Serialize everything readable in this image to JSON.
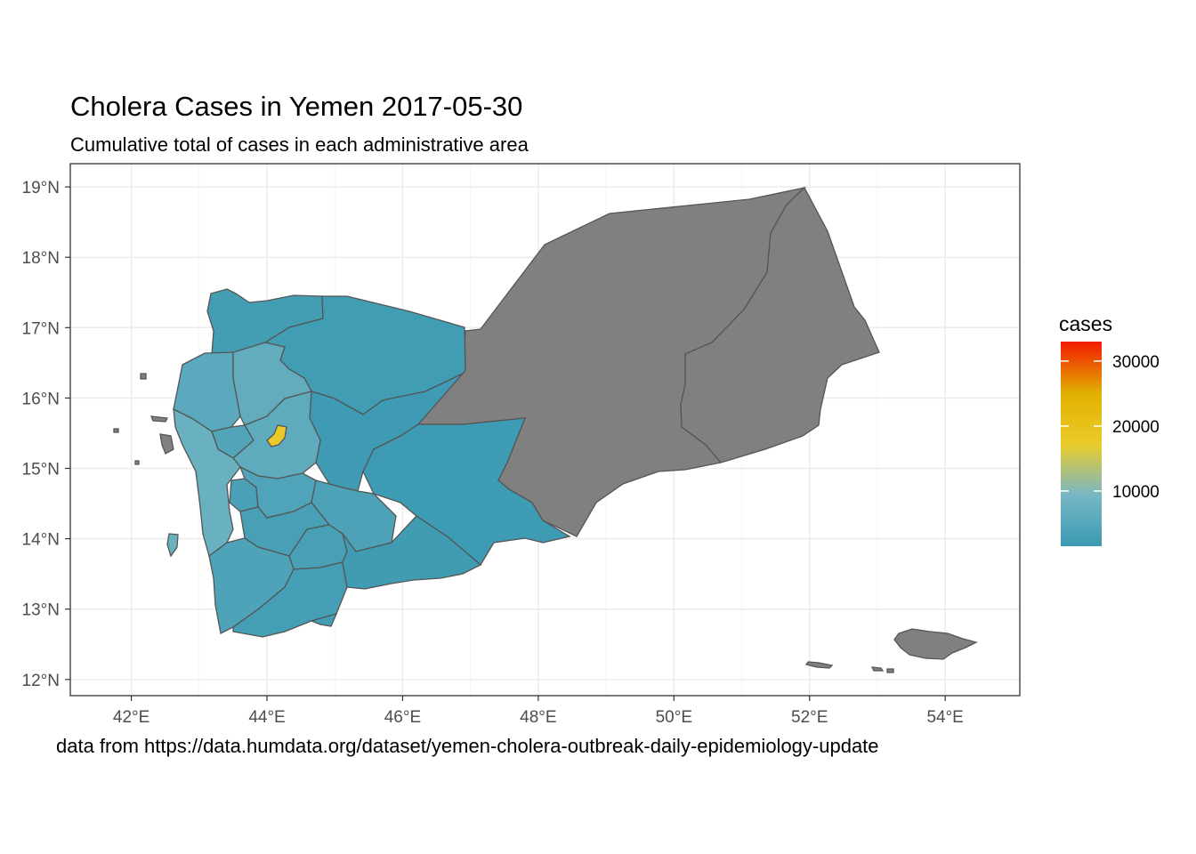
{
  "title": "Cholera Cases in Yemen 2017-05-30",
  "subtitle": "Cumulative total of cases in each administrative area",
  "caption": "data from https://data.humdata.org/dataset/yemen-cholera-outbreak-daily-epidemiology-update",
  "colors": {
    "no_data": "#808080",
    "low": "#3b9ab2",
    "mid": "#78b7c5",
    "mid2": "#ebcc2a",
    "mid3": "#e1af00",
    "high": "#f21a00",
    "border": "#555555",
    "grid": "#ebebeb"
  },
  "chart_data": {
    "type": "choropleth",
    "title": "Cholera Cases in Yemen 2017-05-30",
    "subtitle": "Cumulative total of cases in each administrative area",
    "x_ticks": [
      42,
      44,
      46,
      48,
      50,
      52,
      54
    ],
    "x_tick_labels": [
      "42°E",
      "44°E",
      "46°E",
      "48°E",
      "50°E",
      "52°E",
      "54°E"
    ],
    "y_ticks": [
      12,
      13,
      14,
      15,
      16,
      17,
      18,
      19
    ],
    "y_tick_labels": [
      "12°N",
      "13°N",
      "14°N",
      "15°N",
      "16°N",
      "17°N",
      "18°N",
      "19°N"
    ],
    "xlim": [
      41.1,
      55.1
    ],
    "ylim": [
      11.77,
      19.33
    ],
    "legend": {
      "title": "cases",
      "breaks": [
        10000,
        20000,
        30000
      ],
      "labels": [
        "10000",
        "20000",
        "30000"
      ],
      "range": [
        1500,
        33000
      ],
      "position": "right"
    },
    "grid": true,
    "regions": [
      {
        "id": "hadramaut",
        "value": null
      },
      {
        "id": "al-mahrah",
        "value": null
      },
      {
        "id": "socotra",
        "value": null
      },
      {
        "id": "saada",
        "value": 2500
      },
      {
        "id": "al-jawf",
        "value": 2200
      },
      {
        "id": "marib",
        "value": 1900
      },
      {
        "id": "shabwah",
        "value": 1800
      },
      {
        "id": "hajjah",
        "value": 5500
      },
      {
        "id": "amran",
        "value": 6500
      },
      {
        "id": "al-mahwit",
        "value": 4500
      },
      {
        "id": "sanaa",
        "value": 6000
      },
      {
        "id": "amanat-al-asimah",
        "value": 17500
      },
      {
        "id": "al-hudaydah",
        "value": 7500
      },
      {
        "id": "raymah",
        "value": 3500
      },
      {
        "id": "dhamar",
        "value": 4200
      },
      {
        "id": "al-bayda",
        "value": 3800
      },
      {
        "id": "ibb",
        "value": 3200
      },
      {
        "id": "taizz",
        "value": 4000
      },
      {
        "id": "ad-dali",
        "value": 3000
      },
      {
        "id": "lahij",
        "value": 2600
      },
      {
        "id": "aden",
        "value": 2200
      },
      {
        "id": "abyan",
        "value": 2000
      }
    ]
  }
}
